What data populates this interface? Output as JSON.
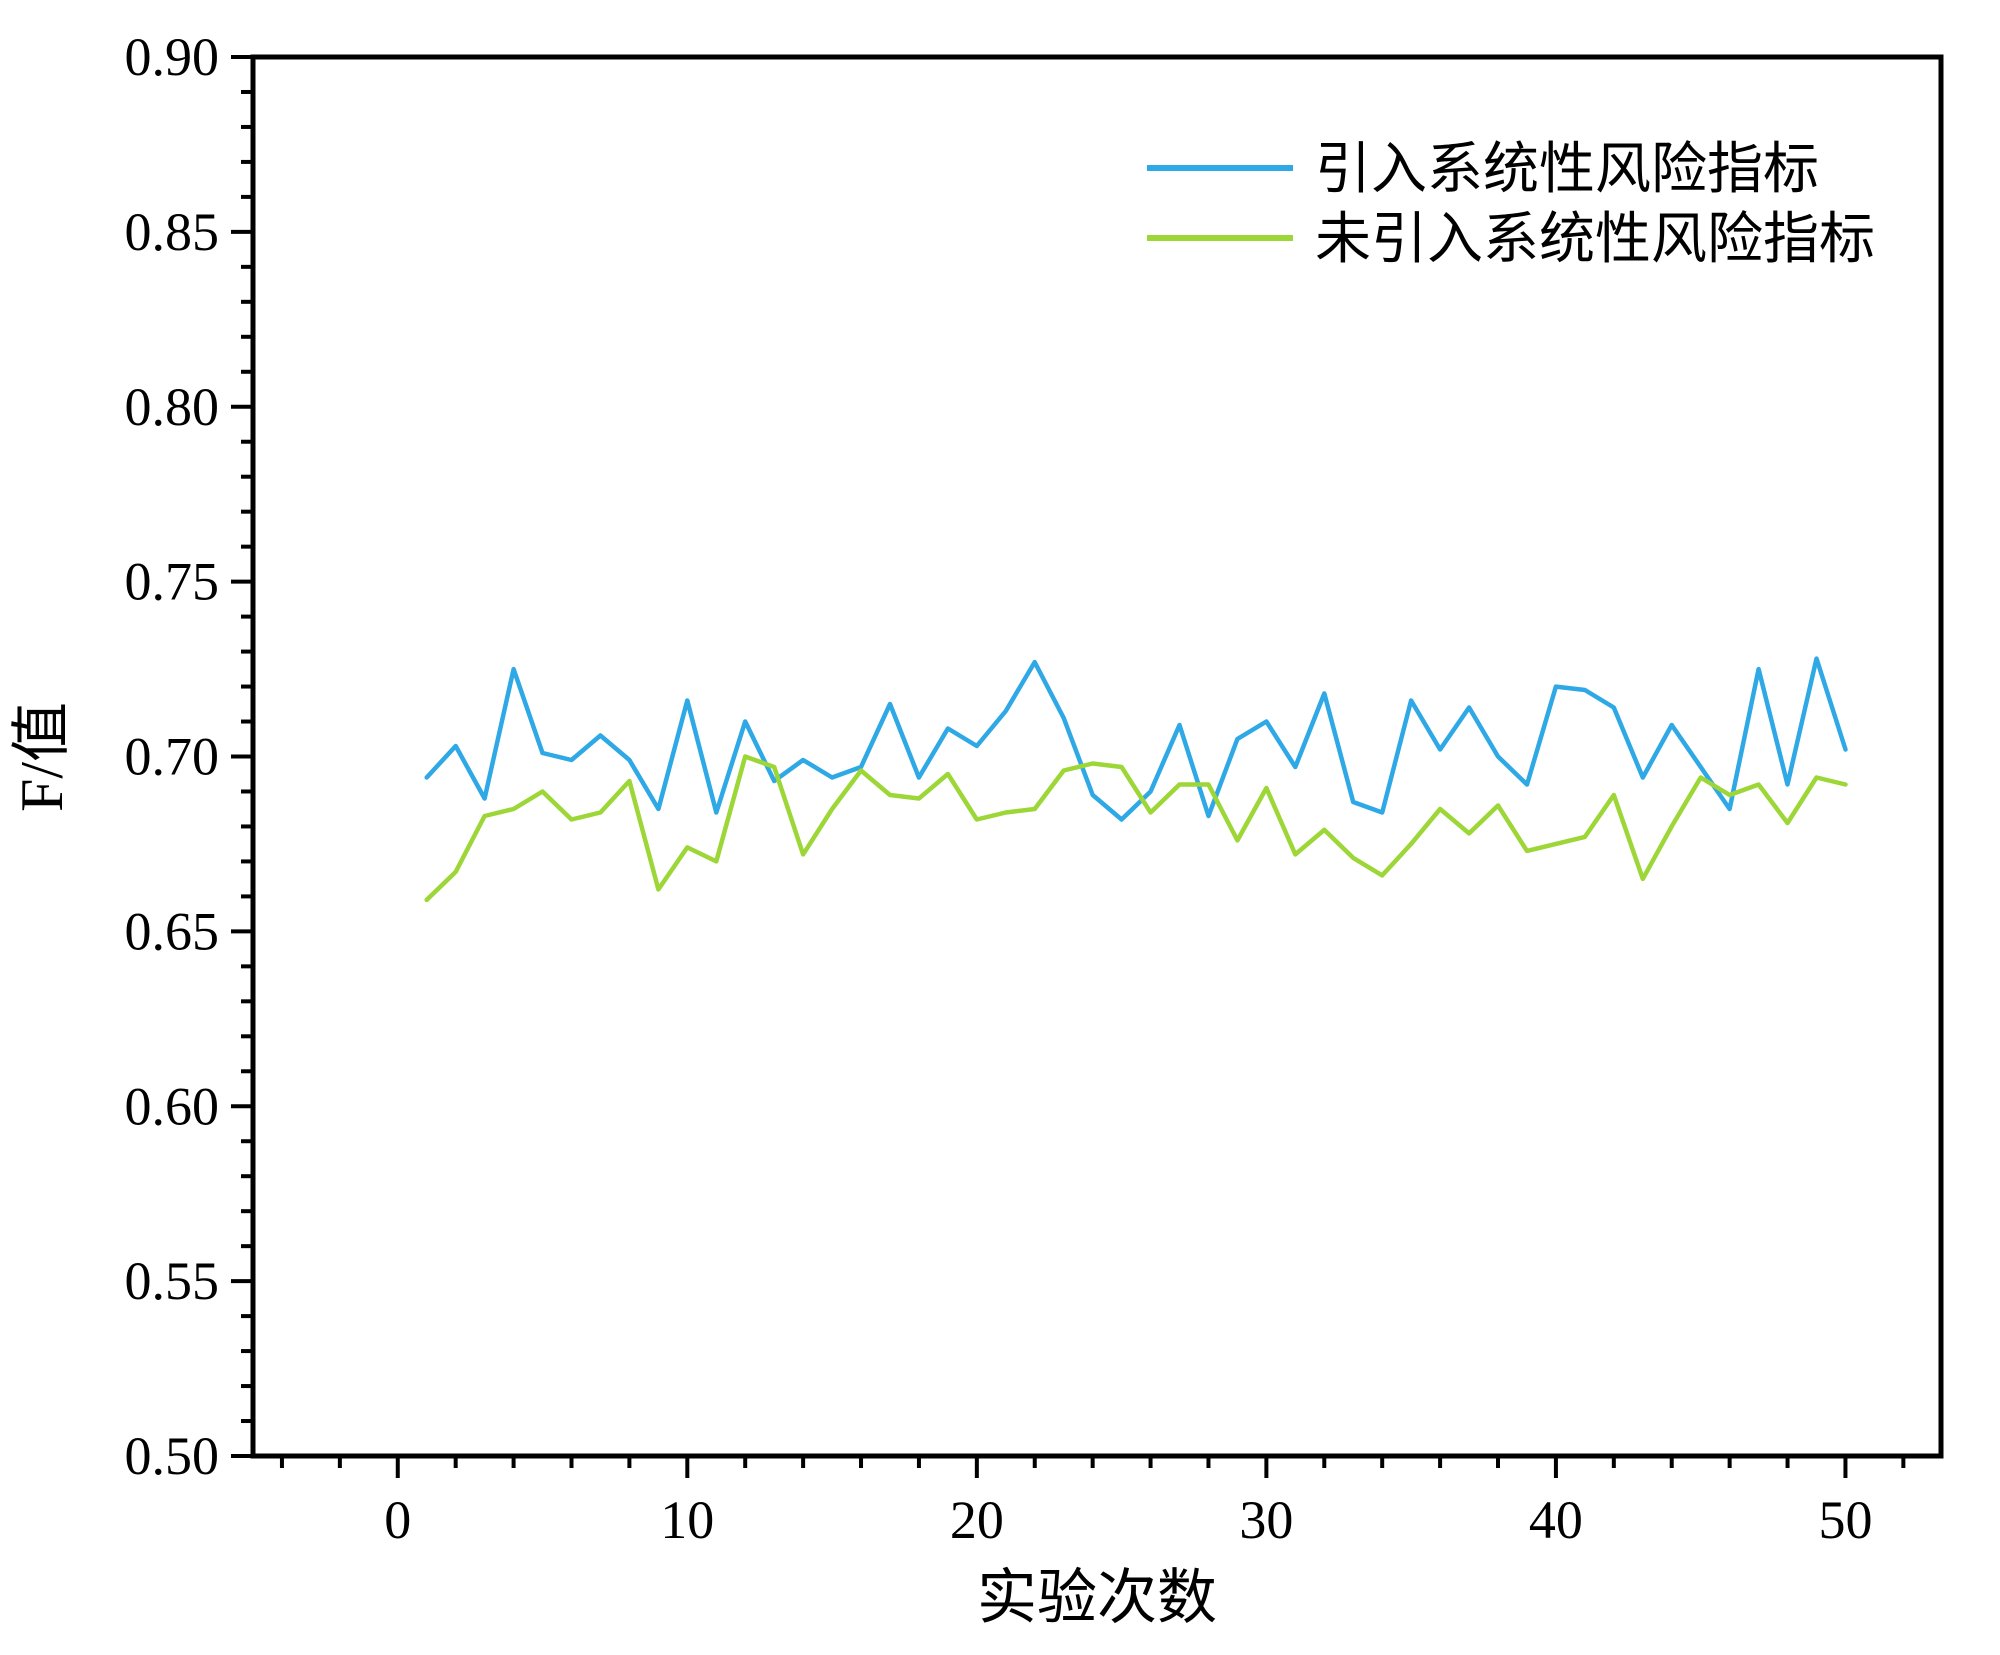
{
  "chart_data": {
    "type": "line",
    "title": "",
    "xlabel": "实验次数",
    "ylabel": "F/值",
    "xlim": [
      -5,
      53.3
    ],
    "ylim": [
      0.5,
      0.9
    ],
    "x_ticks": [
      0,
      10,
      20,
      30,
      40,
      50
    ],
    "y_ticks": [
      0.5,
      0.55,
      0.6,
      0.65,
      0.7,
      0.75,
      0.8,
      0.85,
      0.9
    ],
    "x_minor_step": 2,
    "y_minor_step": 0.01,
    "grid": false,
    "legend_position": "top-right-inside",
    "frame_color": "#000000",
    "x": [
      1,
      2,
      3,
      4,
      5,
      6,
      7,
      8,
      9,
      10,
      11,
      12,
      13,
      14,
      15,
      16,
      17,
      18,
      19,
      20,
      21,
      22,
      23,
      24,
      25,
      26,
      27,
      28,
      29,
      30,
      31,
      32,
      33,
      34,
      35,
      36,
      37,
      38,
      39,
      40,
      41,
      42,
      43,
      44,
      45,
      46,
      47,
      48,
      49,
      50
    ],
    "series": [
      {
        "name": "引入系统性风险指标",
        "color": "#2FA8E6",
        "values": [
          0.694,
          0.703,
          0.688,
          0.725,
          0.701,
          0.699,
          0.706,
          0.699,
          0.685,
          0.716,
          0.684,
          0.71,
          0.693,
          0.699,
          0.694,
          0.697,
          0.715,
          0.694,
          0.708,
          0.703,
          0.713,
          0.727,
          0.711,
          0.689,
          0.682,
          0.69,
          0.709,
          0.683,
          0.705,
          0.71,
          0.697,
          0.718,
          0.687,
          0.684,
          0.716,
          0.702,
          0.714,
          0.7,
          0.692,
          0.72,
          0.719,
          0.714,
          0.694,
          0.709,
          0.697,
          0.685,
          0.725,
          0.692,
          0.728,
          0.702
        ]
      },
      {
        "name": "未引入系统性风险指标",
        "color": "#9CD637",
        "values": [
          0.659,
          0.667,
          0.683,
          0.685,
          0.69,
          0.682,
          0.684,
          0.693,
          0.662,
          0.674,
          0.67,
          0.7,
          0.697,
          0.672,
          0.685,
          0.696,
          0.689,
          0.688,
          0.695,
          0.682,
          0.684,
          0.685,
          0.696,
          0.698,
          0.697,
          0.684,
          0.692,
          0.692,
          0.676,
          0.691,
          0.672,
          0.679,
          0.671,
          0.666,
          0.675,
          0.685,
          0.678,
          0.686,
          0.673,
          0.675,
          0.677,
          0.689,
          0.665,
          0.68,
          0.694,
          0.689,
          0.692,
          0.681,
          0.694,
          0.692
        ]
      }
    ]
  }
}
